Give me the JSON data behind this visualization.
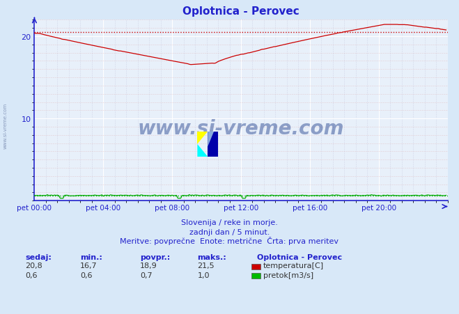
{
  "title": "Oplotnica - Perovec",
  "bg_color": "#d8e8f8",
  "plot_bg_color": "#e8f0fa",
  "grid_color_major": "#ffffff",
  "grid_color_minor": "#c0d0e8",
  "title_color": "#2222cc",
  "axis_color": "#2222cc",
  "tick_color": "#2222cc",
  "subtitle_lines": [
    "Slovenija / reke in morje.",
    "zadnji dan / 5 minut.",
    "Meritve: povprečne  Enote: metrične  Črta: prva meritev"
  ],
  "watermark": "www.si-vreme.com",
  "watermark_color": "#1a3a8a",
  "temp_color": "#cc0000",
  "flow_color": "#00aa00",
  "avg_temp_color": "#cc0000",
  "avg_flow_color": "#00aa00",
  "xlim": [
    0,
    288
  ],
  "ylim": [
    0,
    22
  ],
  "yticks": [
    10,
    20
  ],
  "xtick_labels": [
    "pet 00:00",
    "pet 04:00",
    "pet 08:00",
    "pet 12:00",
    "pet 16:00",
    "pet 20:00"
  ],
  "xtick_positions": [
    0,
    48,
    96,
    144,
    192,
    240
  ],
  "stats_labels": [
    "sedaj:",
    "min.:",
    "povpr.:",
    "maks.:"
  ],
  "stats_temp": [
    "20,8",
    "16,7",
    "18,9",
    "21,5"
  ],
  "stats_flow": [
    "0,6",
    "0,6",
    "0,7",
    "1,0"
  ],
  "legend_title": "Oplotnica - Perovec",
  "legend_entries": [
    "temperatura[C]",
    "pretok[m3/s]"
  ],
  "legend_colors": [
    "#cc0000",
    "#00bb00"
  ],
  "temp_avg": 20.5,
  "flow_avg": 0.65
}
